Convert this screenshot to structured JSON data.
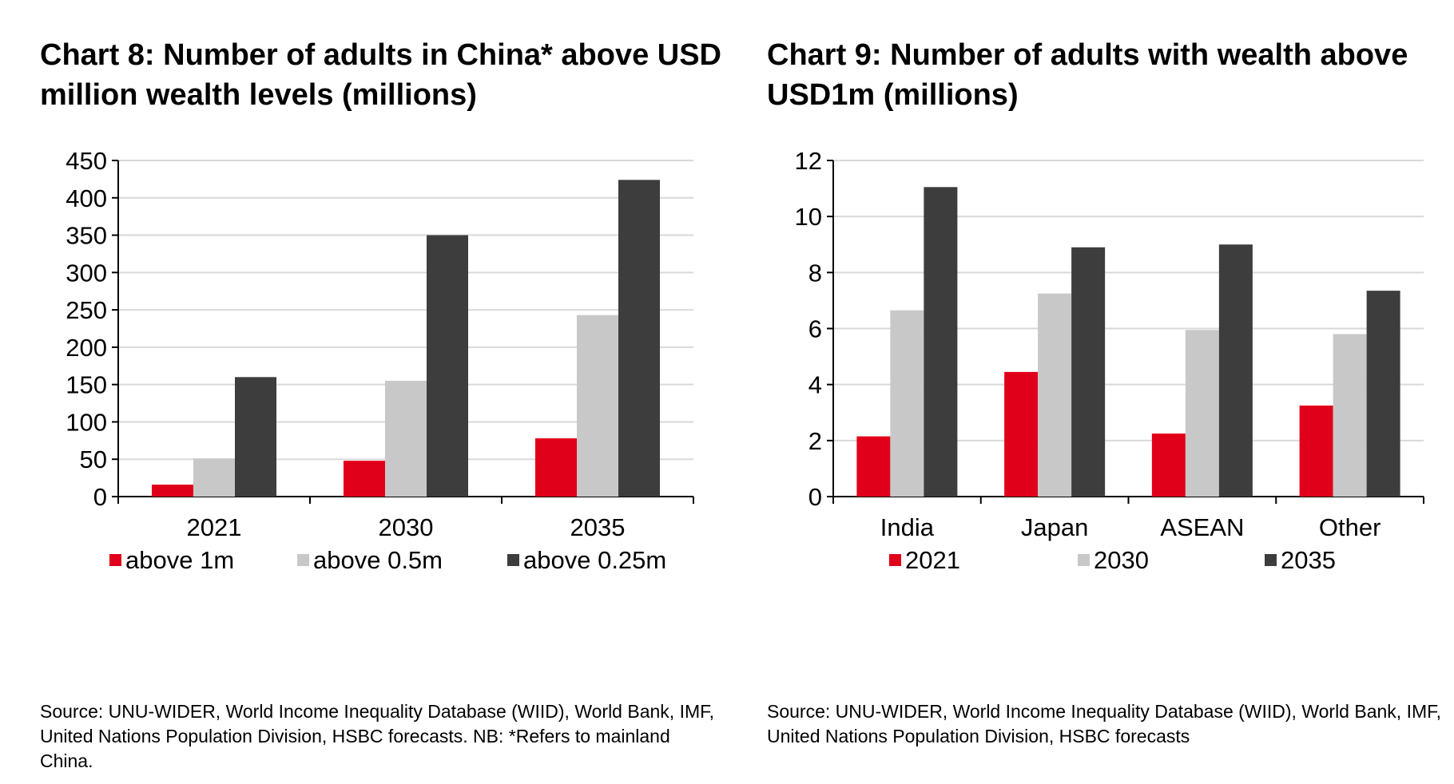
{
  "colors": {
    "red": "#e1001a",
    "light_grey": "#c8c8c8",
    "dark_grey": "#3d3d3d",
    "grid": "#d9d9d9",
    "axis": "#000000"
  },
  "chart_data": [
    {
      "type": "bar",
      "title": "Chart 8: Number of adults in China* above USD million wealth levels (millions)",
      "xlabel": "",
      "ylabel": "",
      "categories": [
        "2021",
        "2030",
        "2035"
      ],
      "series": [
        {
          "name": "above 1m",
          "values": [
            16,
            48,
            78
          ]
        },
        {
          "name": "above 0.5m",
          "values": [
            51,
            155,
            243
          ]
        },
        {
          "name": "above 0.25m",
          "values": [
            160,
            350,
            424
          ]
        }
      ],
      "ylim": [
        0,
        450
      ],
      "yticks": [
        "0",
        "50",
        "100",
        "150",
        "200",
        "250",
        "300",
        "350",
        "400",
        "450"
      ],
      "grid": true,
      "legend": "bottom",
      "source": "Source: UNU-WIDER, World Income Inequality Database (WIID), World Bank, IMF, United Nations Population Division, HSBC forecasts. NB: *Refers to mainland China."
    },
    {
      "type": "bar",
      "title": "Chart 9: Number of adults with wealth above USD1m (millions)",
      "xlabel": "",
      "ylabel": "",
      "categories": [
        "India",
        "Japan",
        "ASEAN",
        "Other"
      ],
      "series": [
        {
          "name": "2021",
          "values": [
            2.15,
            4.45,
            2.25,
            3.25
          ]
        },
        {
          "name": "2030",
          "values": [
            6.65,
            7.25,
            5.95,
            5.8
          ]
        },
        {
          "name": "2035",
          "values": [
            11.05,
            8.9,
            9.0,
            7.35
          ]
        }
      ],
      "ylim": [
        0,
        12
      ],
      "yticks": [
        "0",
        "2",
        "4",
        "6",
        "8",
        "10",
        "12"
      ],
      "grid": true,
      "legend": "bottom",
      "source": "Source: UNU-WIDER, World Income Inequality Database (WIID), World Bank, IMF, United Nations Population Division, HSBC forecasts"
    }
  ]
}
